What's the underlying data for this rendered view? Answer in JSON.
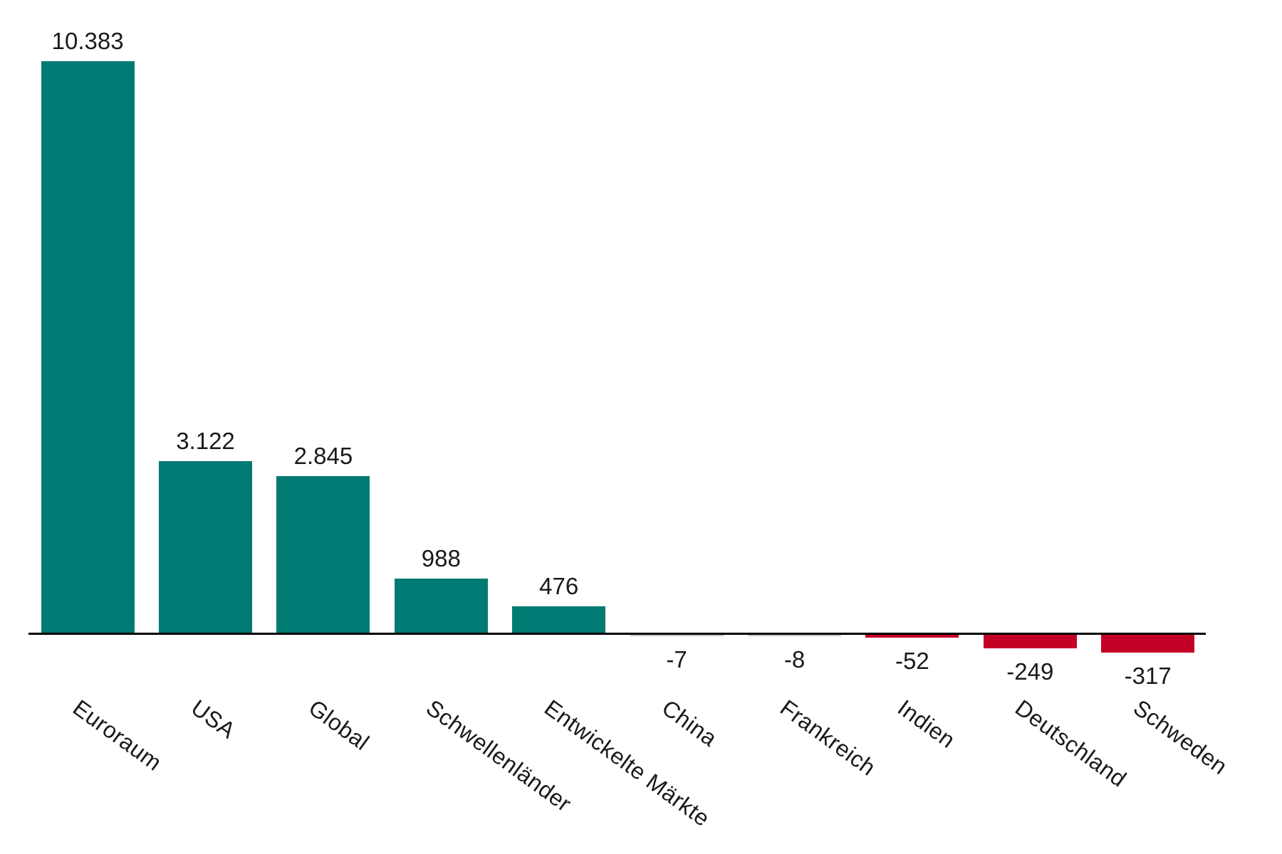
{
  "chart_data": {
    "type": "bar",
    "title": "",
    "xlabel": "",
    "ylabel": "",
    "categories": [
      "Euroraum",
      "USA",
      "Global",
      "Schwellenländer",
      "Entwickelte Märkte",
      "China",
      "Frankreich",
      "Indien",
      "Deutschland",
      "Schweden"
    ],
    "values": [
      10383,
      3122,
      2845,
      988,
      476,
      -7,
      -8,
      -52,
      -249,
      -317
    ],
    "value_labels": [
      "10.383",
      "3.122",
      "2.845",
      "988",
      "476",
      "-7",
      "-8",
      "-52",
      "-249",
      "-317"
    ],
    "number_format": "german-thousands-dot",
    "ylim": [
      -400,
      10500
    ],
    "grid": false,
    "legend": null,
    "baseline": 0,
    "label_rotation_deg": 36,
    "colors": {
      "positive_bar": "#007A72",
      "negative_bar": "#C40026",
      "near_zero_bar": "#CBCBCF",
      "axis": "#000000",
      "text": "#1a1a1a",
      "background": "#ffffff"
    }
  }
}
